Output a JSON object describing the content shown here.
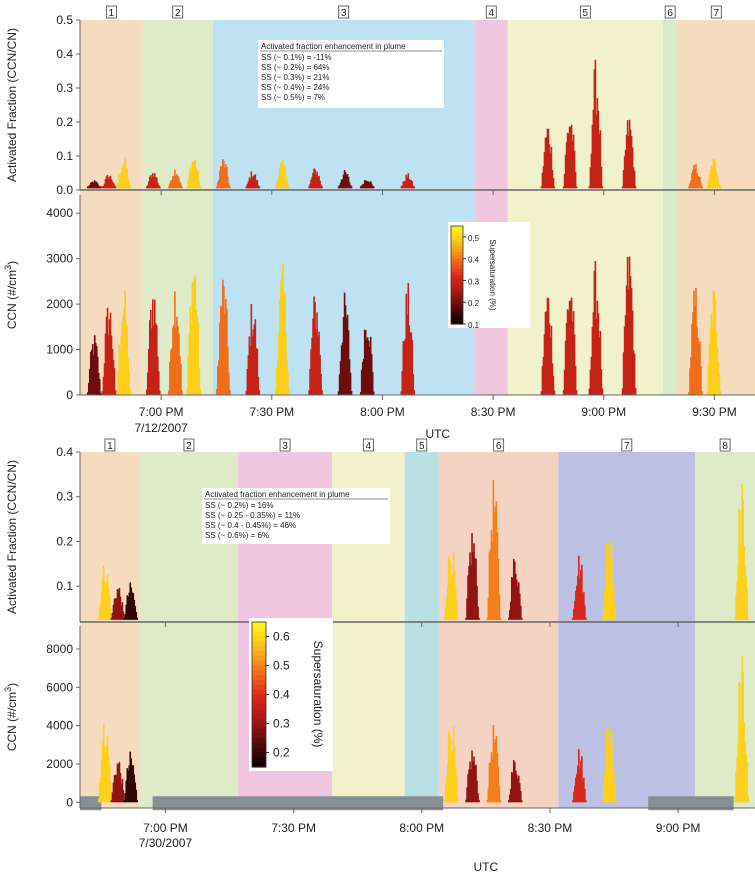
{
  "chart_data": [
    {
      "type": "scatter",
      "panel_group": "flight-7-12-2007",
      "date": "7/12/2007",
      "xlabel": "UTC",
      "x_ticks": [
        "7:00 PM",
        "7:30 PM",
        "8:00 PM",
        "8:30 PM",
        "9:00 PM",
        "9:30 PM"
      ],
      "x_range": [
        "6:38 PM",
        "9:41 PM"
      ],
      "segments": [
        {
          "label": "1",
          "start": "6:38 PM",
          "end": "6:55 PM",
          "color": "#f6dcbf"
        },
        {
          "label": "2",
          "start": "6:55 PM",
          "end": "7:14 PM",
          "color": "#deeac8"
        },
        {
          "label": "3",
          "start": "7:14 PM",
          "end": "8:25 PM",
          "color": "#bfe2f2"
        },
        {
          "label": "4",
          "start": "8:25 PM",
          "end": "8:34 PM",
          "color": "#f0c6e0"
        },
        {
          "label": "5",
          "start": "8:34 PM",
          "end": "9:16 PM",
          "color": "#f1f1cc"
        },
        {
          "label": "6",
          "start": "9:16 PM",
          "end": "9:20 PM",
          "color": "#dbeacb"
        },
        {
          "label": "7",
          "start": "9:20 PM",
          "end": "9:41 PM",
          "color": "#f6dcbf"
        }
      ],
      "top": {
        "ylabel": "Activated Fraction (CCN/CN)",
        "ylim": [
          0,
          0.5
        ],
        "yticks": [
          "0.0",
          "0.1",
          "0.2",
          "0.3",
          "0.4",
          "0.5"
        ],
        "annotation": {
          "title": "Activated fraction enhancement in plume",
          "lines": [
            "SS (~ 0.1%) = -11%",
            "SS (~ 0.2%) = 64%",
            "SS (~ 0.3%) = 21%",
            "SS (~ 0.4%) = 24%",
            "SS (~ 0.5%) = 7%"
          ]
        }
      },
      "bottom": {
        "ylabel": "CCN (#/cm3)",
        "ylim": [
          0,
          4400
        ],
        "yticks": [
          "0",
          "1000",
          "2000",
          "3000",
          "4000"
        ],
        "colorbar": {
          "label": "Supersaturation (%)",
          "ticks": [
            "0.5",
            "0.4",
            "0.3",
            "0.2",
            "0.1"
          ],
          "range": [
            0.1,
            0.55
          ]
        }
      },
      "series_approx": [
        {
          "t": "6:42 PM",
          "ss": 0.2,
          "af": 0.03,
          "ccn": 1400
        },
        {
          "t": "6:46 PM",
          "ss": 0.3,
          "af": 0.05,
          "ccn": 2200
        },
        {
          "t": "6:50 PM",
          "ss": 0.5,
          "af": 0.1,
          "ccn": 2500
        },
        {
          "t": "6:58 PM",
          "ss": 0.3,
          "af": 0.06,
          "ccn": 2600
        },
        {
          "t": "7:04 PM",
          "ss": 0.4,
          "af": 0.07,
          "ccn": 2700
        },
        {
          "t": "7:09 PM",
          "ss": 0.5,
          "af": 0.11,
          "ccn": 3300
        },
        {
          "t": "7:17 PM",
          "ss": 0.4,
          "af": 0.1,
          "ccn": 2800
        },
        {
          "t": "7:25 PM",
          "ss": 0.3,
          "af": 0.06,
          "ccn": 2200
        },
        {
          "t": "7:33 PM",
          "ss": 0.5,
          "af": 0.09,
          "ccn": 2900
        },
        {
          "t": "7:42 PM",
          "ss": 0.3,
          "af": 0.07,
          "ccn": 2400
        },
        {
          "t": "7:50 PM",
          "ss": 0.2,
          "af": 0.06,
          "ccn": 2300
        },
        {
          "t": "7:56 PM",
          "ss": 0.2,
          "af": 0.04,
          "ccn": 2100
        },
        {
          "t": "8:07 PM",
          "ss": 0.3,
          "af": 0.05,
          "ccn": 2500
        },
        {
          "t": "8:45 PM",
          "ss": 0.3,
          "af": 0.21,
          "ccn": 2500
        },
        {
          "t": "8:51 PM",
          "ss": 0.3,
          "af": 0.25,
          "ccn": 2800
        },
        {
          "t": "8:58 PM",
          "ss": 0.3,
          "af": 0.39,
          "ccn": 3000
        },
        {
          "t": "9:07 PM",
          "ss": 0.3,
          "af": 0.23,
          "ccn": 3400
        },
        {
          "t": "9:25 PM",
          "ss": 0.4,
          "af": 0.08,
          "ccn": 2500
        },
        {
          "t": "9:30 PM",
          "ss": 0.5,
          "af": 0.1,
          "ccn": 2500
        }
      ]
    },
    {
      "type": "scatter",
      "panel_group": "flight-7-30-2007",
      "date": "7/30/2007",
      "xlabel": "UTC",
      "x_ticks": [
        "7:00 PM",
        "7:30 PM",
        "8:00 PM",
        "8:30 PM",
        "9:00 PM"
      ],
      "x_range": [
        "6:40 PM",
        "9:18 PM"
      ],
      "segments": [
        {
          "label": "1",
          "start": "6:40 PM",
          "end": "6:54 PM",
          "color": "#f6dcbf"
        },
        {
          "label": "2",
          "start": "6:54 PM",
          "end": "7:17 PM",
          "color": "#deeac8"
        },
        {
          "label": "3",
          "start": "7:17 PM",
          "end": "7:39 PM",
          "color": "#f0c6e0"
        },
        {
          "label": "4",
          "start": "7:39 PM",
          "end": "7:56 PM",
          "color": "#f1f1cc"
        },
        {
          "label": "5",
          "start": "7:56 PM",
          "end": "8:04 PM",
          "color": "#b9e0e2"
        },
        {
          "label": "6",
          "start": "8:04 PM",
          "end": "8:32 PM",
          "color": "#f4d3c2"
        },
        {
          "label": "7",
          "start": "8:32 PM",
          "end": "9:04 PM",
          "color": "#bcc0e2"
        },
        {
          "label": "8",
          "start": "9:04 PM",
          "end": "9:18 PM",
          "color": "#deeac8"
        }
      ],
      "top": {
        "ylabel": "Activated Fraction (CCN/CN)",
        "ylim": [
          0.02,
          0.4
        ],
        "yticks": [
          "0.1",
          "0.2",
          "0.3",
          "0.4"
        ],
        "annotation": {
          "title": "Activated fraction enhancement in plume",
          "lines": [
            "SS (~ 0.2%) = 16%",
            "SS (~ 0.25 - 0.35%) = 11%",
            "SS (~ 0.4 - 0.45%) = 46%",
            "SS (~ 0.6%) = 6%"
          ]
        }
      },
      "bottom": {
        "ylabel": "CCN (#/cm3)",
        "ylim": [
          -300,
          9200
        ],
        "yticks": [
          "0",
          "2000",
          "4000",
          "6000",
          "8000"
        ],
        "colorbar": {
          "label": "Supersaturation (%)",
          "ticks": [
            "0.6",
            "0.5",
            "0.4",
            "0.3",
            "0.2"
          ],
          "range": [
            0.15,
            0.65
          ]
        }
      },
      "series_approx": [
        {
          "t": "6:46 PM",
          "ss": 0.6,
          "af": 0.16,
          "ccn": 4600
        },
        {
          "t": "6:49 PM",
          "ss": 0.3,
          "af": 0.11,
          "ccn": 2500
        },
        {
          "t": "6:52 PM",
          "ss": 0.2,
          "af": 0.11,
          "ccn": 2700
        },
        {
          "t": "8:07 PM",
          "ss": 0.6,
          "af": 0.21,
          "ccn": 4800
        },
        {
          "t": "8:12 PM",
          "ss": 0.3,
          "af": 0.24,
          "ccn": 3000
        },
        {
          "t": "8:17 PM",
          "ss": 0.5,
          "af": 0.35,
          "ccn": 4200
        },
        {
          "t": "8:22 PM",
          "ss": 0.3,
          "af": 0.18,
          "ccn": 2500
        },
        {
          "t": "8:37 PM",
          "ss": 0.4,
          "af": 0.18,
          "ccn": 3000
        },
        {
          "t": "8:44 PM",
          "ss": 0.6,
          "af": 0.25,
          "ccn": 5000
        },
        {
          "t": "9:15 PM",
          "ss": 0.6,
          "af": 0.34,
          "ccn": 7900
        }
      ],
      "gray_bars_bottom": [
        [
          "6:40 PM",
          "6:45 PM"
        ],
        [
          "6:57 PM",
          "8:05 PM"
        ],
        [
          "8:53 PM",
          "9:13 PM"
        ]
      ]
    }
  ],
  "colors": {
    "ss_colormap": [
      "#000000",
      "#3b0606",
      "#7a1010",
      "#b01a16",
      "#d8281c",
      "#ec5a1c",
      "#f6961c",
      "#fbc91c",
      "#fff21c"
    ],
    "axis": "#777777",
    "gray_bar": "#888e95"
  }
}
